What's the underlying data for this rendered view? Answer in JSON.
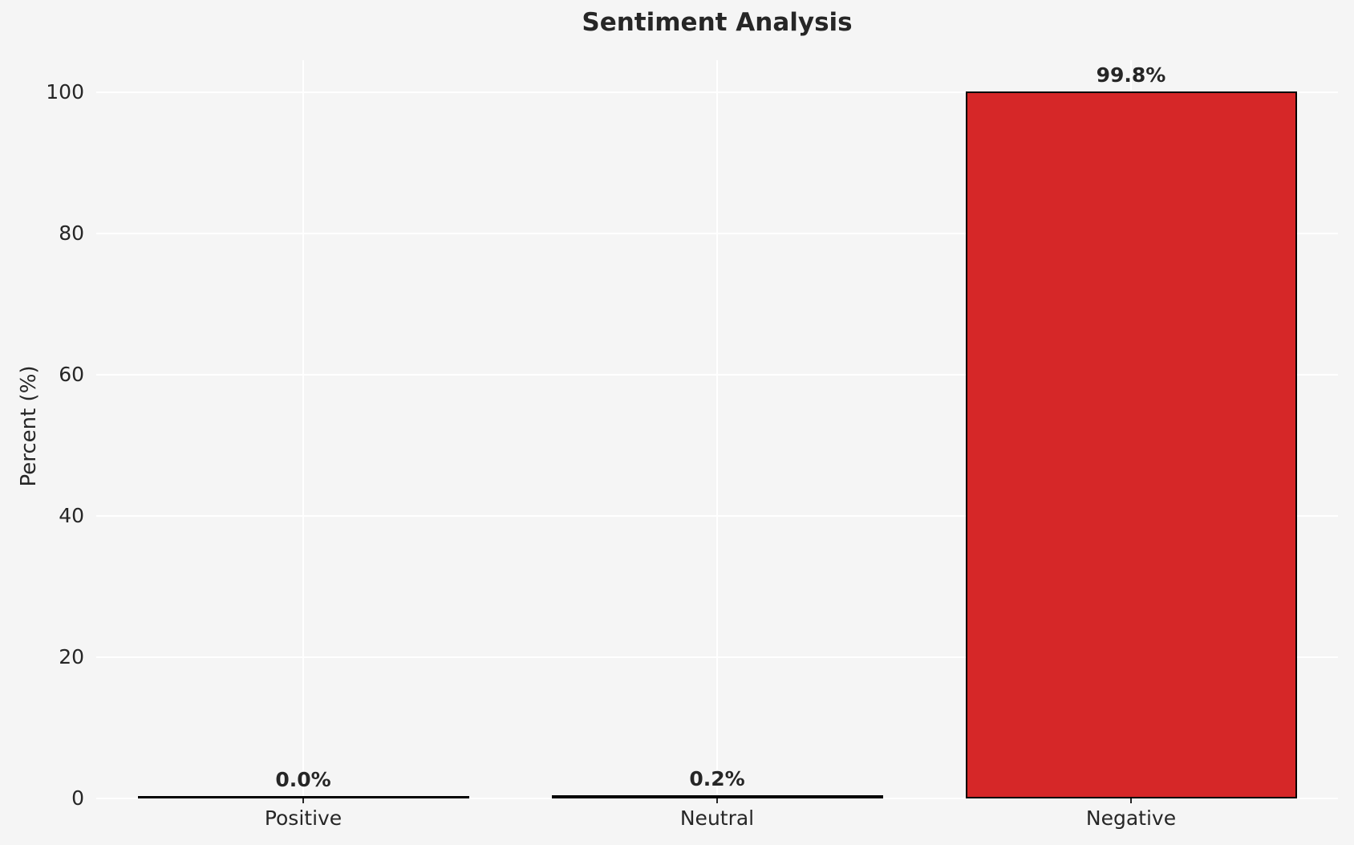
{
  "figure": {
    "background_color": "#f5f5f5",
    "grid_color": "#ffffff",
    "text_color": "#262626",
    "bar_fill_color": "#d62728",
    "bar_edge_color": "#000000"
  },
  "chart_data": {
    "type": "bar",
    "title": "Sentiment Analysis",
    "categories": [
      "Positive",
      "Neutral",
      "Negative"
    ],
    "values": [
      0.0,
      0.2,
      99.8
    ],
    "value_labels": [
      "0.0%",
      "0.2%",
      "99.8%"
    ],
    "xlabel": "",
    "ylabel": "Percent (%)",
    "ylim": [
      0,
      104.5
    ],
    "yticks": [
      0,
      20,
      40,
      60,
      80,
      100
    ],
    "grid": "horizontal and vertical white gridlines on",
    "legend_position": "none"
  }
}
